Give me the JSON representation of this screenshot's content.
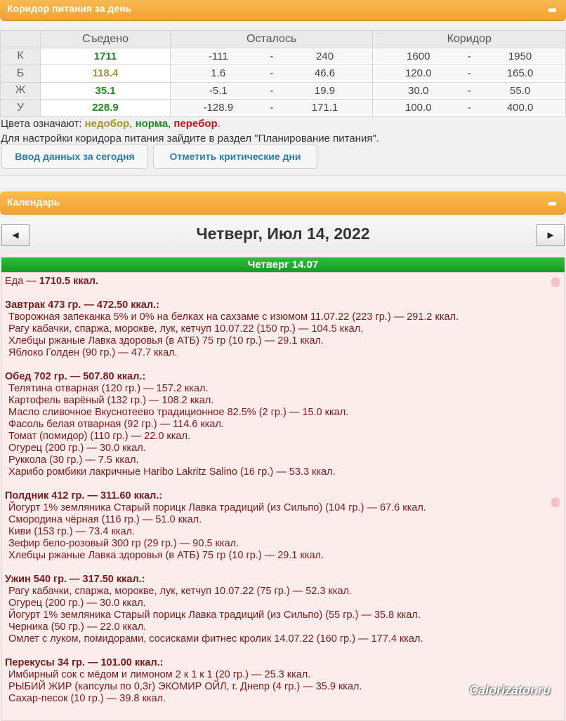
{
  "corridor_panel": {
    "title": "Коридор питания за день",
    "headers": [
      "",
      "Съедено",
      "Осталось",
      "Коридор"
    ],
    "rows": [
      {
        "label": "К",
        "eaten": "1711",
        "eaten_color": "#1e8a1e",
        "left_from": "-111",
        "left_to": "240",
        "corr_from": "1600",
        "corr_to": "1950"
      },
      {
        "label": "Б",
        "eaten": "118.4",
        "eaten_color": "#a3962a",
        "left_from": "1.6",
        "left_to": "46.6",
        "corr_from": "120.0",
        "corr_to": "165.0"
      },
      {
        "label": "Ж",
        "eaten": "35.1",
        "eaten_color": "#1e8a1e",
        "left_from": "-5.1",
        "left_to": "19.9",
        "corr_from": "30.0",
        "corr_to": "55.0"
      },
      {
        "label": "У",
        "eaten": "228.9",
        "eaten_color": "#1e8a1e",
        "left_from": "-128.9",
        "left_to": "171.1",
        "corr_from": "100.0",
        "corr_to": "400.0"
      }
    ],
    "dash": "-",
    "legend_prefix": "Цвета означают: ",
    "legend_under": "недобор",
    "legend_norm": "норма",
    "legend_over": "перебор",
    "colors": {
      "under": "#a3962a",
      "norm": "#1e8a1e",
      "over": "#c0141a"
    },
    "hint": "Для настройки коридора питания зайдите в раздел \"Планирование питания\".",
    "btn_today": "Ввод данных за сегодня",
    "btn_critical": "Отметить критические дни"
  },
  "calendar": {
    "title": "Календарь",
    "prev": "◄",
    "next": "►",
    "date_title": "Четверг, Июл 14, 2022",
    "day_label": "Четверг 14.07",
    "food_label": "Еда — ",
    "food_total": "1710.5 ккал.",
    "meals": [
      {
        "header": "Завтрак 473 гр. — 472.50 ккал.:",
        "items": [
          "Творожная запеканка 5% и 0% на белках на сахзаме с изюмом 11.07.22 (223 гр.) — 291.2 ккал.",
          "Рагу кабачки, спаржа, морокве, лук, кетчуп 10.07.22 (150 гр.) — 104.5 ккал.",
          "Хлебцы ржаные Лавка здоровья (в АТБ) 75 гр (10 гр.) — 29.1 ккал.",
          "Яблоко Голден (90 гр.) — 47.7 ккал."
        ]
      },
      {
        "header": "Обед 702 гр. — 507.80 ккал.:",
        "items": [
          "Телятина отварная (120 гр.) — 157.2 ккал.",
          "Картофель варёный (132 гр.) — 108.2 ккал.",
          "Масло сливочное Вкуснотеево традиционное 82.5% (2 гр.) — 15.0 ккал.",
          "Фасоль белая отварная (92 гр.) — 114.6 ккал.",
          "Томат (помидор) (110 гр.) — 22.0 ккал.",
          "Огурец (200 гр.) — 30.0 ккал.",
          "Руккола (30 гр.) — 7.5 ккал.",
          "Харибо ромбики лакричные Haribo Lakritz Salino (16 гр.) — 53.3 ккал."
        ]
      },
      {
        "header": "Полдник 412 гр. — 311.60 ккал.:",
        "items": [
          "Йогурт 1% земляника Старый порицк Лавка традиций (из Сильпо) (104 гр.) — 67.6 ккал.",
          "Смородина чёрная (116 гр.) — 51.0 ккал.",
          "Киви (153 гр.) — 73.4 ккал.",
          "Зефир бело-розовый 300 гр (29 гр.) — 90.5 ккал.",
          "Хлебцы ржаные Лавка здоровья (в АТБ) 75 гр (10 гр.) — 29.1 ккал."
        ]
      },
      {
        "header": "Ужин 540 гр. — 317.50 ккал.:",
        "items": [
          "Рагу кабачки, спаржа, морокве, лук, кетчуп 10.07.22 (75 гр.) — 52.3 ккал.",
          "Огурец (200 гр.) — 30.0 ккал.",
          "Йогурт 1% земляника Старый порицк Лавка традиций (из Сильпо) (55 гр.) — 35.8 ккал.",
          "Черника (50 гр.) — 22.0 ккал.",
          "Омлет с луком, помидорами, сосисками фитнес кролик 14.07.22 (160 гр.) — 177.4 ккал."
        ]
      },
      {
        "header": "Перекусы 34 гр. — 101.00 ккал.:",
        "items": [
          "Имбирный сок с мёдом и лимоном 2 к 1 к 1 (20 гр.) — 25.3 ккал.",
          "РЫБИЙ ЖИР (капсулы по 0,3г) ЭКОМИР ОЙЛ, г. Днепр (4 гр.) — 35.9 ккал.",
          "Сахар-песок (10 гр.) — 39.8 ккал."
        ]
      }
    ]
  },
  "watermark": "Calorizator.ru"
}
